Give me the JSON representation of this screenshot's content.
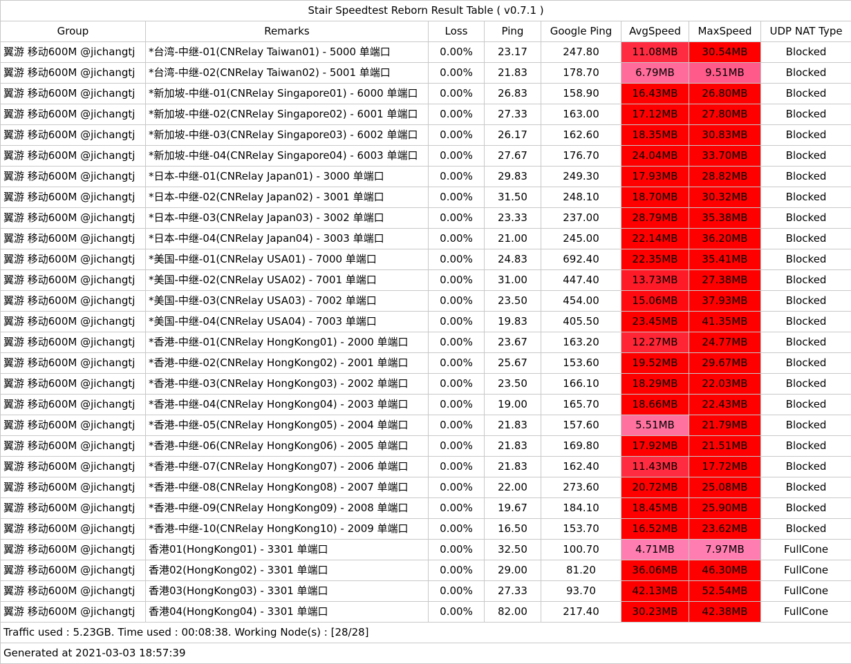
{
  "title": "Stair Speedtest Reborn Result Table ( v0.7.1 )",
  "headers": [
    "Group",
    "Remarks",
    "Loss",
    "Ping",
    "Google Ping",
    "AvgSpeed",
    "MaxSpeed",
    "UDP NAT Type"
  ],
  "speed_colors": {
    "red": "#ff0000",
    "red_mid": "#ff2b40",
    "pink_mid": "#ff4d7a",
    "pink_light": "#ff6b9a",
    "pink_pale": "#ff7db0"
  },
  "rows": [
    {
      "group": "翼游 移动600M @jichangtj",
      "remarks": "*台湾-中继-01(CNRelay Taiwan01) - 5000 单端口",
      "loss": "0.00%",
      "ping": "23.17",
      "google_ping": "247.80",
      "avg": "11.08MB",
      "max": "30.54MB",
      "nat": "Blocked",
      "avg_color": "#ff2b40",
      "max_color": "#ff0000"
    },
    {
      "group": "翼游 移动600M @jichangtj",
      "remarks": "*台湾-中继-02(CNRelay Taiwan02) - 5001 单端口",
      "loss": "0.00%",
      "ping": "21.83",
      "google_ping": "178.70",
      "avg": "6.79MB",
      "max": "9.51MB",
      "nat": "Blocked",
      "avg_color": "#ff6b9a",
      "max_color": "#ff5a8a"
    },
    {
      "group": "翼游 移动600M @jichangtj",
      "remarks": "*新加坡-中继-01(CNRelay Singapore01) - 6000 单端口",
      "loss": "0.00%",
      "ping": "26.83",
      "google_ping": "158.90",
      "avg": "16.43MB",
      "max": "26.80MB",
      "nat": "Blocked",
      "avg_color": "#ff0000",
      "max_color": "#ff0000"
    },
    {
      "group": "翼游 移动600M @jichangtj",
      "remarks": "*新加坡-中继-02(CNRelay Singapore02) - 6001 单端口",
      "loss": "0.00%",
      "ping": "27.33",
      "google_ping": "163.00",
      "avg": "17.12MB",
      "max": "27.80MB",
      "nat": "Blocked",
      "avg_color": "#ff0000",
      "max_color": "#ff0000"
    },
    {
      "group": "翼游 移动600M @jichangtj",
      "remarks": "*新加坡-中继-03(CNRelay Singapore03) - 6002 单端口",
      "loss": "0.00%",
      "ping": "26.17",
      "google_ping": "162.60",
      "avg": "18.35MB",
      "max": "30.83MB",
      "nat": "Blocked",
      "avg_color": "#ff0000",
      "max_color": "#ff0000"
    },
    {
      "group": "翼游 移动600M @jichangtj",
      "remarks": "*新加坡-中继-04(CNRelay Singapore04) - 6003 单端口",
      "loss": "0.00%",
      "ping": "27.67",
      "google_ping": "176.70",
      "avg": "24.04MB",
      "max": "33.70MB",
      "nat": "Blocked",
      "avg_color": "#ff0000",
      "max_color": "#ff0000"
    },
    {
      "group": "翼游 移动600M @jichangtj",
      "remarks": "*日本-中继-01(CNRelay Japan01) - 3000 单端口",
      "loss": "0.00%",
      "ping": "29.83",
      "google_ping": "249.30",
      "avg": "17.93MB",
      "max": "28.82MB",
      "nat": "Blocked",
      "avg_color": "#ff0000",
      "max_color": "#ff0000"
    },
    {
      "group": "翼游 移动600M @jichangtj",
      "remarks": "*日本-中继-02(CNRelay Japan02) - 3001 单端口",
      "loss": "0.00%",
      "ping": "31.50",
      "google_ping": "248.10",
      "avg": "18.70MB",
      "max": "30.32MB",
      "nat": "Blocked",
      "avg_color": "#ff0000",
      "max_color": "#ff0000"
    },
    {
      "group": "翼游 移动600M @jichangtj",
      "remarks": "*日本-中继-03(CNRelay Japan03) - 3002 单端口",
      "loss": "0.00%",
      "ping": "23.33",
      "google_ping": "237.00",
      "avg": "28.79MB",
      "max": "35.38MB",
      "nat": "Blocked",
      "avg_color": "#ff0000",
      "max_color": "#ff0000"
    },
    {
      "group": "翼游 移动600M @jichangtj",
      "remarks": "*日本-中继-04(CNRelay Japan04) - 3003 单端口",
      "loss": "0.00%",
      "ping": "21.00",
      "google_ping": "245.00",
      "avg": "22.14MB",
      "max": "36.20MB",
      "nat": "Blocked",
      "avg_color": "#ff0000",
      "max_color": "#ff0000"
    },
    {
      "group": "翼游 移动600M @jichangtj",
      "remarks": "*美国-中继-01(CNRelay USA01) - 7000 单端口",
      "loss": "0.00%",
      "ping": "24.83",
      "google_ping": "692.40",
      "avg": "22.35MB",
      "max": "35.41MB",
      "nat": "Blocked",
      "avg_color": "#ff0000",
      "max_color": "#ff0000"
    },
    {
      "group": "翼游 移动600M @jichangtj",
      "remarks": "*美国-中继-02(CNRelay USA02) - 7001 单端口",
      "loss": "0.00%",
      "ping": "31.00",
      "google_ping": "447.40",
      "avg": "13.73MB",
      "max": "27.38MB",
      "nat": "Blocked",
      "avg_color": "#ff1a28",
      "max_color": "#ff0000"
    },
    {
      "group": "翼游 移动600M @jichangtj",
      "remarks": "*美国-中继-03(CNRelay USA03) - 7002 单端口",
      "loss": "0.00%",
      "ping": "23.50",
      "google_ping": "454.00",
      "avg": "15.06MB",
      "max": "37.93MB",
      "nat": "Blocked",
      "avg_color": "#ff0a10",
      "max_color": "#ff0000"
    },
    {
      "group": "翼游 移动600M @jichangtj",
      "remarks": "*美国-中继-04(CNRelay USA04) - 7003 单端口",
      "loss": "0.00%",
      "ping": "19.83",
      "google_ping": "405.50",
      "avg": "23.45MB",
      "max": "41.35MB",
      "nat": "Blocked",
      "avg_color": "#ff0000",
      "max_color": "#ff0000"
    },
    {
      "group": "翼游 移动600M @jichangtj",
      "remarks": "*香港-中继-01(CNRelay HongKong01) - 2000 单端口",
      "loss": "0.00%",
      "ping": "23.67",
      "google_ping": "163.20",
      "avg": "12.27MB",
      "max": "24.77MB",
      "nat": "Blocked",
      "avg_color": "#ff2535",
      "max_color": "#ff0000"
    },
    {
      "group": "翼游 移动600M @jichangtj",
      "remarks": "*香港-中继-02(CNRelay HongKong02) - 2001 单端口",
      "loss": "0.00%",
      "ping": "25.67",
      "google_ping": "153.60",
      "avg": "19.52MB",
      "max": "29.67MB",
      "nat": "Blocked",
      "avg_color": "#ff0000",
      "max_color": "#ff0000"
    },
    {
      "group": "翼游 移动600M @jichangtj",
      "remarks": "*香港-中继-03(CNRelay HongKong03) - 2002 单端口",
      "loss": "0.00%",
      "ping": "23.50",
      "google_ping": "166.10",
      "avg": "18.29MB",
      "max": "22.03MB",
      "nat": "Blocked",
      "avg_color": "#ff0000",
      "max_color": "#ff0000"
    },
    {
      "group": "翼游 移动600M @jichangtj",
      "remarks": "*香港-中继-04(CNRelay HongKong04) - 2003 单端口",
      "loss": "0.00%",
      "ping": "19.00",
      "google_ping": "165.70",
      "avg": "18.66MB",
      "max": "22.43MB",
      "nat": "Blocked",
      "avg_color": "#ff0000",
      "max_color": "#ff0000"
    },
    {
      "group": "翼游 移动600M @jichangtj",
      "remarks": "*香港-中继-05(CNRelay HongKong05) - 2004 单端口",
      "loss": "0.00%",
      "ping": "21.83",
      "google_ping": "157.60",
      "avg": "5.51MB",
      "max": "21.79MB",
      "nat": "Blocked",
      "avg_color": "#ff72a0",
      "max_color": "#ff0000"
    },
    {
      "group": "翼游 移动600M @jichangtj",
      "remarks": "*香港-中继-06(CNRelay HongKong06) - 2005 单端口",
      "loss": "0.00%",
      "ping": "21.83",
      "google_ping": "169.80",
      "avg": "17.92MB",
      "max": "21.51MB",
      "nat": "Blocked",
      "avg_color": "#ff0000",
      "max_color": "#ff0000"
    },
    {
      "group": "翼游 移动600M @jichangtj",
      "remarks": "*香港-中继-07(CNRelay HongKong07) - 2006 单端口",
      "loss": "0.00%",
      "ping": "21.83",
      "google_ping": "162.40",
      "avg": "11.43MB",
      "max": "17.72MB",
      "nat": "Blocked",
      "avg_color": "#ff2b40",
      "max_color": "#ff0000"
    },
    {
      "group": "翼游 移动600M @jichangtj",
      "remarks": "*香港-中继-08(CNRelay HongKong08) - 2007 单端口",
      "loss": "0.00%",
      "ping": "22.00",
      "google_ping": "273.60",
      "avg": "20.72MB",
      "max": "25.08MB",
      "nat": "Blocked",
      "avg_color": "#ff0000",
      "max_color": "#ff0000"
    },
    {
      "group": "翼游 移动600M @jichangtj",
      "remarks": "*香港-中继-09(CNRelay HongKong09) - 2008 单端口",
      "loss": "0.00%",
      "ping": "19.67",
      "google_ping": "184.10",
      "avg": "18.45MB",
      "max": "25.90MB",
      "nat": "Blocked",
      "avg_color": "#ff0000",
      "max_color": "#ff0000"
    },
    {
      "group": "翼游 移动600M @jichangtj",
      "remarks": "*香港-中继-10(CNRelay HongKong10) - 2009 单端口",
      "loss": "0.00%",
      "ping": "16.50",
      "google_ping": "153.70",
      "avg": "16.52MB",
      "max": "23.62MB",
      "nat": "Blocked",
      "avg_color": "#ff0000",
      "max_color": "#ff0000"
    },
    {
      "group": "翼游 移动600M @jichangtj",
      "remarks": "香港01(HongKong01) - 3301 单端口",
      "loss": "0.00%",
      "ping": "32.50",
      "google_ping": "100.70",
      "avg": "4.71MB",
      "max": "7.97MB",
      "nat": "FullCone",
      "avg_color": "#ff7db0",
      "max_color": "#ff7db0"
    },
    {
      "group": "翼游 移动600M @jichangtj",
      "remarks": "香港02(HongKong02) - 3301 单端口",
      "loss": "0.00%",
      "ping": "29.00",
      "google_ping": "81.20",
      "avg": "36.06MB",
      "max": "46.30MB",
      "nat": "FullCone",
      "avg_color": "#ff0000",
      "max_color": "#ff0000"
    },
    {
      "group": "翼游 移动600M @jichangtj",
      "remarks": "香港03(HongKong03) - 3301 单端口",
      "loss": "0.00%",
      "ping": "27.33",
      "google_ping": "93.70",
      "avg": "42.13MB",
      "max": "52.54MB",
      "nat": "FullCone",
      "avg_color": "#ff0000",
      "max_color": "#ff0000"
    },
    {
      "group": "翼游 移动600M @jichangtj",
      "remarks": "香港04(HongKong04) - 3301 单端口",
      "loss": "0.00%",
      "ping": "82.00",
      "google_ping": "217.40",
      "avg": "30.23MB",
      "max": "42.38MB",
      "nat": "FullCone",
      "avg_color": "#ff0000",
      "max_color": "#ff0000"
    }
  ],
  "footer": {
    "traffic": "Traffic used : 5.23GB. Time used : 00:08:38. Working Node(s) : [28/28]",
    "generated": "Generated at 2021-03-03 18:57:39"
  }
}
